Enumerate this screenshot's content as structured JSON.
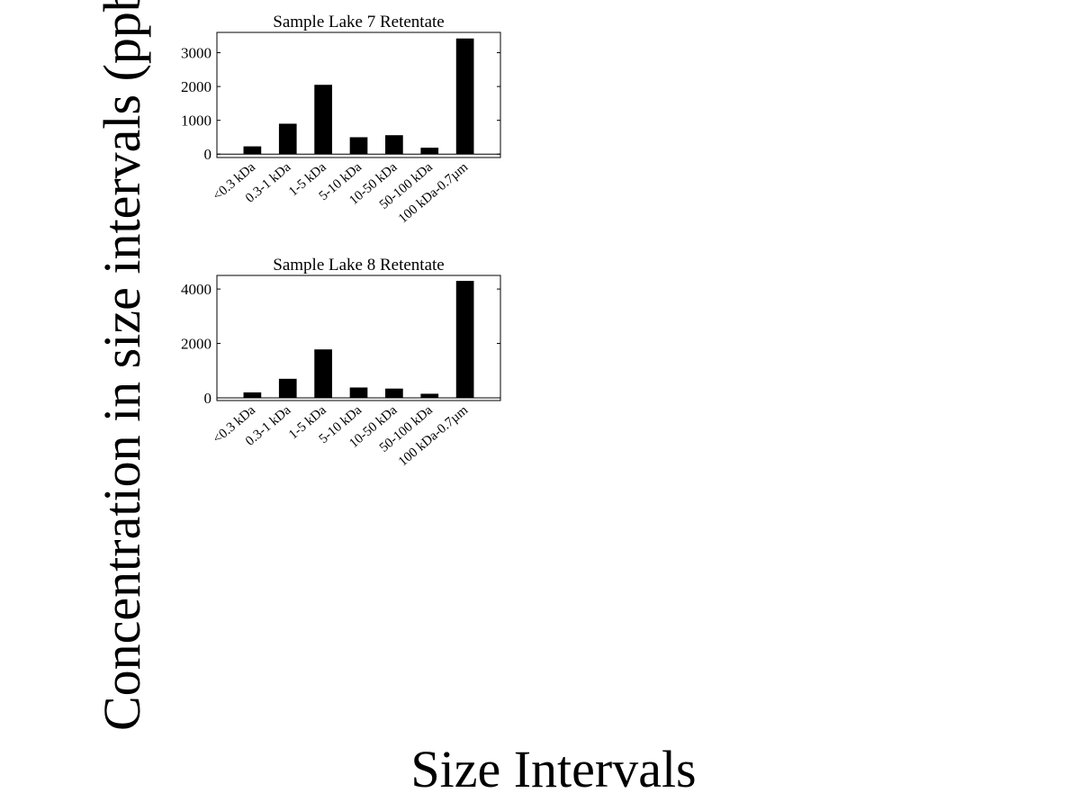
{
  "figure": {
    "ylabel": "Concentration in size intervals (ppb-QS",
    "xlabel": "Size Intervals"
  },
  "chart_data": [
    {
      "type": "bar",
      "title": "Sample Lake 7 Retentate",
      "categories": [
        "<0.3 kDa",
        "0.3-1 kDa",
        "1-5 kDa",
        "5-10 kDa",
        "10-50 kDa",
        "50-100 kDa",
        "100 kDa-0.7µm"
      ],
      "values": [
        230,
        900,
        2050,
        500,
        560,
        190,
        3420
      ],
      "yticks": [
        0,
        1000,
        2000,
        3000
      ],
      "ytick_labels": [
        "0",
        "1000",
        "2000",
        "3000"
      ],
      "ylim": [
        -100,
        3600
      ],
      "grid": false,
      "color": "#000000"
    },
    {
      "type": "bar",
      "title": "Sample Lake 8 Retentate",
      "categories": [
        "<0.3 kDa",
        "0.3-1 kDa",
        "1-5 kDa",
        "5-10 kDa",
        "10-50 kDa",
        "50-100 kDa",
        "100 kDa-0.7µm"
      ],
      "values": [
        200,
        700,
        1780,
        380,
        340,
        150,
        4300
      ],
      "yticks": [
        0,
        2000,
        4000
      ],
      "ytick_labels": [
        "0",
        "2000",
        "4000"
      ],
      "ylim": [
        -100,
        4500
      ],
      "grid": false,
      "color": "#000000"
    }
  ]
}
